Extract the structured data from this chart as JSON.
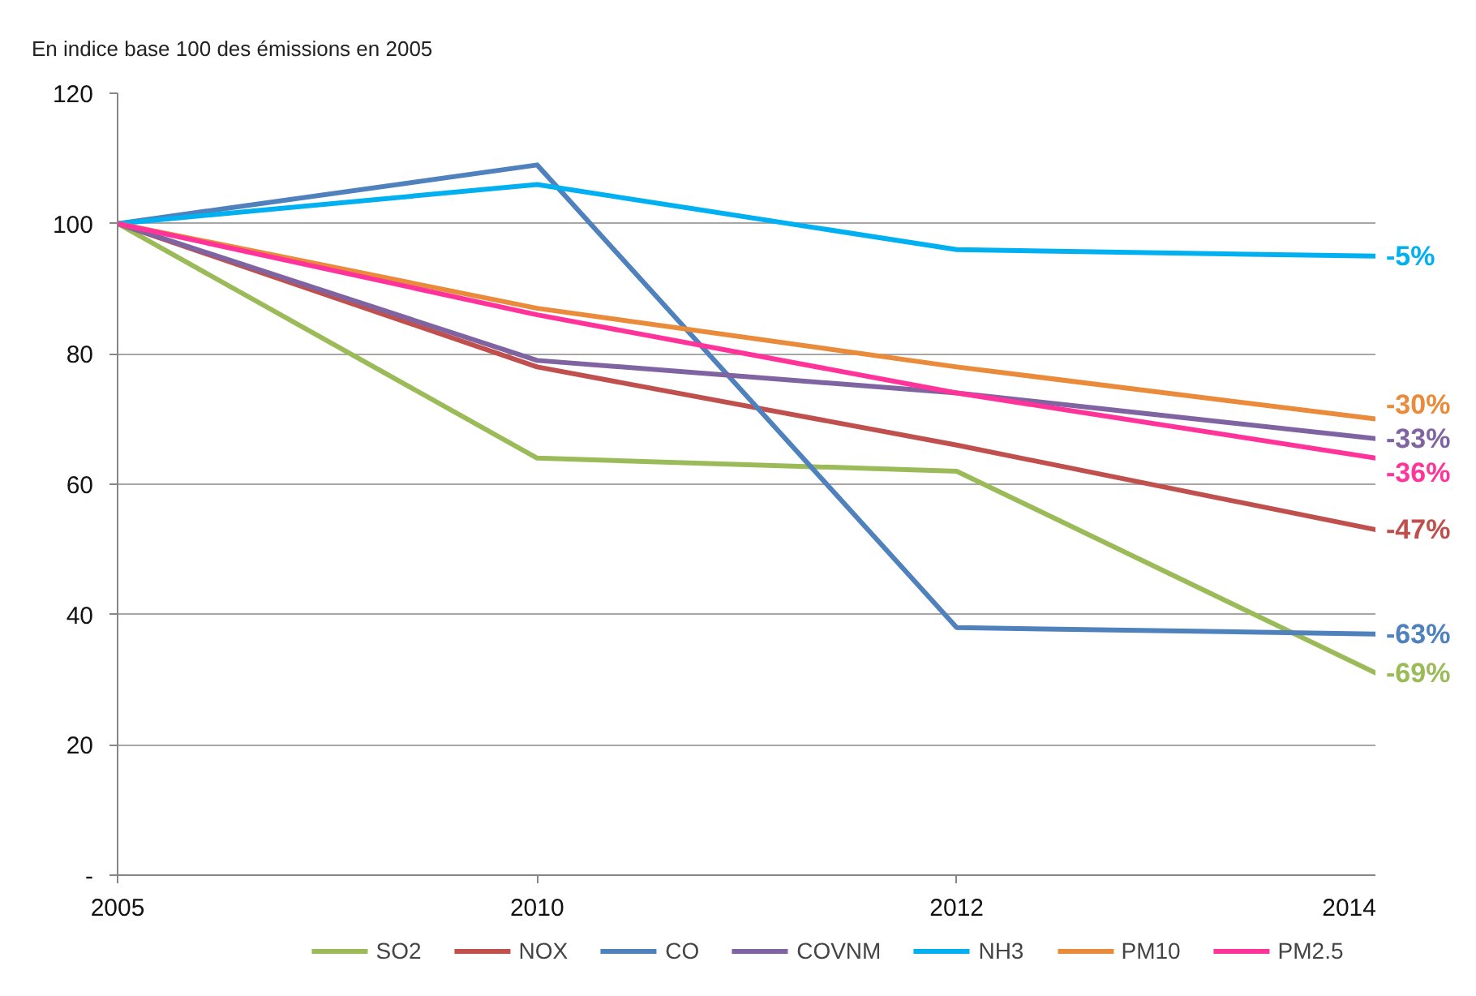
{
  "chart_data": {
    "type": "line",
    "title": "En indice base 100 des émissions en 2005",
    "categories": [
      "2005",
      "2010",
      "2012",
      "2014"
    ],
    "series": [
      {
        "name": "SO2",
        "color": "#9bbb59",
        "values": [
          100,
          64,
          62,
          31
        ]
      },
      {
        "name": "NOX",
        "color": "#c0504d",
        "values": [
          100,
          78,
          66,
          53
        ]
      },
      {
        "name": "CO",
        "color": "#4f81bd",
        "values": [
          100,
          109,
          38,
          37
        ]
      },
      {
        "name": "COVNM",
        "color": "#8064a2",
        "values": [
          100,
          79,
          74,
          67
        ]
      },
      {
        "name": "NH3",
        "color": "#00b0f0",
        "values": [
          100,
          106,
          96,
          95
        ]
      },
      {
        "name": "PM10",
        "color": "#e98b3a",
        "values": [
          100,
          87,
          78,
          70
        ]
      },
      {
        "name": "PM2.5",
        "color": "#ff3399",
        "values": [
          100,
          86,
          74,
          64
        ]
      }
    ],
    "annotations": [
      {
        "text": "-5%",
        "x": "2014",
        "y": 95
      },
      {
        "text": "-30%",
        "x": "2014",
        "y": 70
      },
      {
        "text": "-33%",
        "x": "2014",
        "y": 67
      },
      {
        "text": "-36%",
        "x": "2014",
        "y": 64
      },
      {
        "text": "-47%",
        "x": "2014",
        "y": 53
      },
      {
        "text": "-63%",
        "x": "2014",
        "y": 37
      },
      {
        "text": "-69%",
        "x": "2014",
        "y": 31
      }
    ],
    "ylim": [
      0,
      120
    ],
    "yticks": [
      {
        "value": 0,
        "label": "-"
      },
      20,
      40,
      60,
      80,
      100,
      120
    ],
    "grid": "y",
    "legend": "bottom",
    "line_style": "solid"
  }
}
